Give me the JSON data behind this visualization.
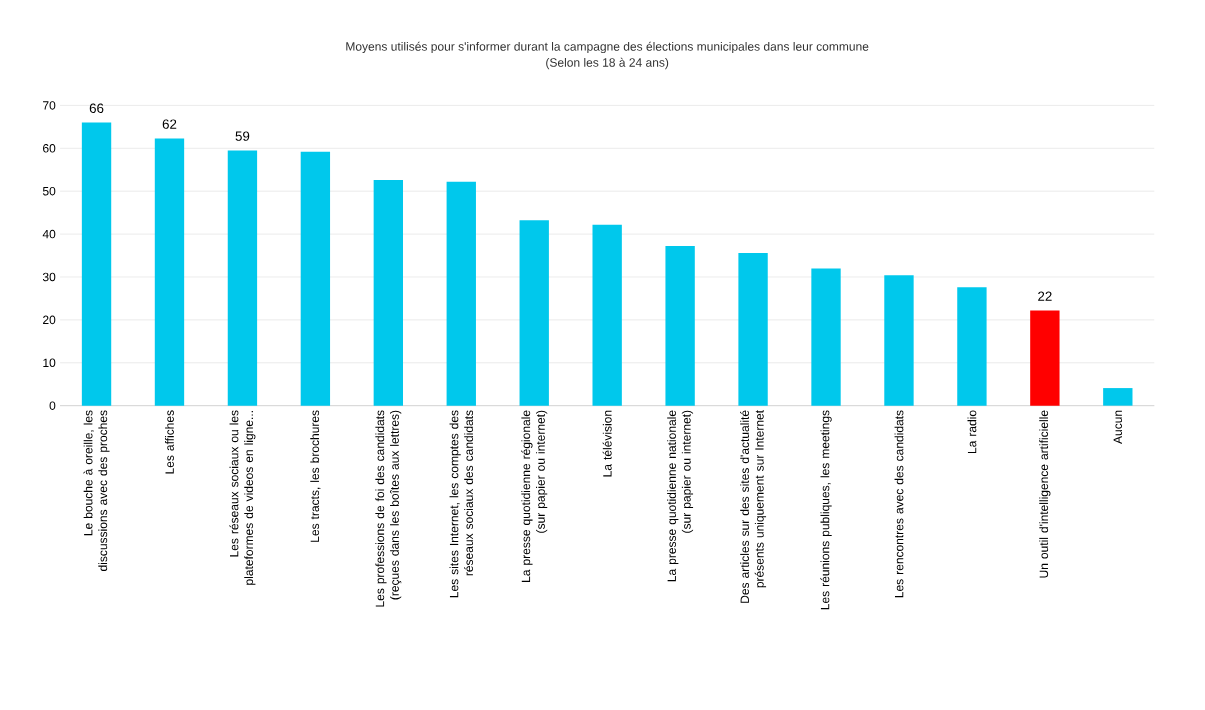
{
  "chart_data": {
    "type": "bar",
    "title": "Moyens utilisés pour s'informer durant la campagne des élections municipales dans leur commune",
    "subtitle": "(Selon les 18 à 24 ans)",
    "categories": [
      "Le bouche à oreille, les discussions avec des proches",
      "Les affiches",
      "Les réseaux sociaux ou les plateformes de videos en ligne...",
      "Les tracts, les brochures",
      "Les professions de foi des candidats (reçues dans les boîtes aux lettres)",
      "Les sites Internet, les comptes des réseaux sociaux des candidats",
      "La presse quotidienne régionale (sur papier ou internet)",
      "La télévision",
      "La presse quotidienne nationale (sur papier ou internet)",
      "Des articles sur des sites d'actualité présents uniquement sur Internet",
      "Les réunions publiques, les meetings",
      "Les rencontres avec des candidats",
      "La radio",
      "Un outil d'intelligence artificielle",
      "Aucun"
    ],
    "values": [
      66,
      62.3,
      59.5,
      59.2,
      52.6,
      52.2,
      43.2,
      42.2,
      37.2,
      35.6,
      32.0,
      30.4,
      27.6,
      22.2,
      4.1
    ],
    "value_labels": [
      "66",
      "62",
      "59",
      null,
      null,
      null,
      null,
      null,
      null,
      null,
      null,
      null,
      null,
      "22",
      null
    ],
    "colors": [
      "#00c8ec",
      "#00c8ec",
      "#00c8ec",
      "#00c8ec",
      "#00c8ec",
      "#00c8ec",
      "#00c8ec",
      "#00c8ec",
      "#00c8ec",
      "#00c8ec",
      "#00c8ec",
      "#00c8ec",
      "#00c8ec",
      "#ff0000",
      "#00c8ec"
    ],
    "ylim": [
      0,
      70
    ],
    "yticks": [
      0,
      10,
      20,
      30,
      40,
      50,
      60,
      70
    ],
    "grid": "y"
  }
}
